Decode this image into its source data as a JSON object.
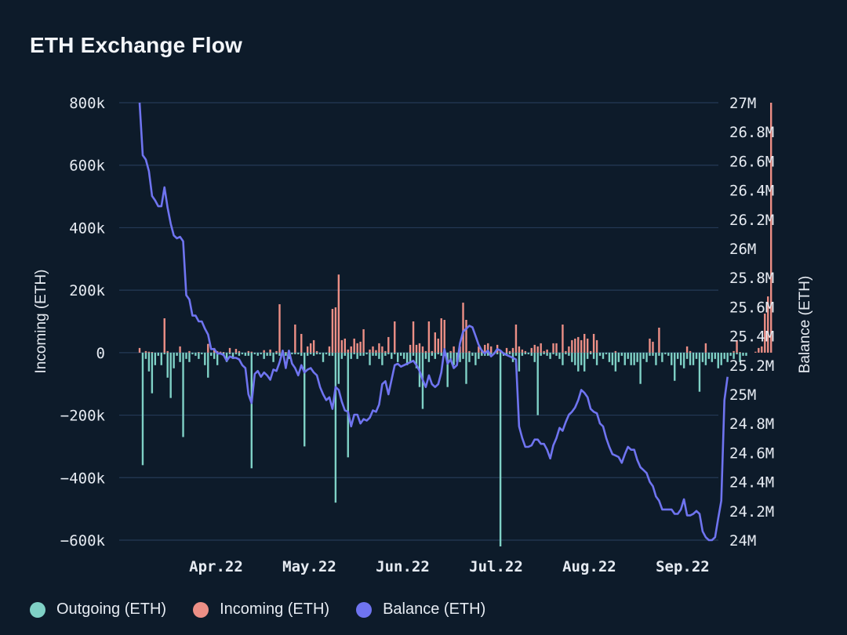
{
  "chart_data": {
    "type": "bar+line",
    "title": "ETH Exchange Flow",
    "left_axis": {
      "label": "Incoming (ETH)",
      "ticks": [
        "800k",
        "600k",
        "400k",
        "200k",
        "0",
        "−200k",
        "−400k",
        "−600k"
      ],
      "tick_values": [
        800000,
        600000,
        400000,
        200000,
        0,
        -200000,
        -400000,
        -600000
      ],
      "range": [
        -600000,
        800000
      ]
    },
    "right_axis": {
      "label": "Balance (ETH)",
      "ticks": [
        "27M",
        "26.8M",
        "26.6M",
        "26.4M",
        "26.2M",
        "26M",
        "25.8M",
        "25.6M",
        "25.4M",
        "25.2M",
        "25M",
        "24.8M",
        "24.6M",
        "24.4M",
        "24.2M",
        "24M"
      ],
      "tick_values": [
        27000000,
        26800000,
        26600000,
        26400000,
        26200000,
        26000000,
        25800000,
        25600000,
        25400000,
        25200000,
        25000000,
        24800000,
        24600000,
        24400000,
        24200000,
        24000000
      ],
      "range": [
        24000000,
        27000000
      ]
    },
    "x_axis": {
      "labels": [
        "Apr.22",
        "May.22",
        "Jun.22",
        "Jul.22",
        "Aug.22",
        "Sep.22"
      ],
      "label_day_index": [
        16,
        46,
        76,
        106,
        136,
        166
      ],
      "num_days": 180
    },
    "colors": {
      "outgoing": "#7fd1c6",
      "incoming": "#ec8f86",
      "balance": "#6f74f0",
      "grid": "#243a56"
    },
    "legend": [
      {
        "label": "Outgoing (ETH)",
        "color": "#7fd1c6"
      },
      {
        "label": "Incoming (ETH)",
        "color": "#ec8f86"
      },
      {
        "label": "Balance (ETH)",
        "color": "#6f74f0"
      }
    ],
    "series": [
      {
        "name": "Incoming (ETH)",
        "type": "bar",
        "values": [
          15000,
          0,
          5000,
          3000,
          2000,
          0,
          0,
          0,
          110000,
          5000,
          0,
          0,
          0,
          20000,
          0,
          0,
          5000,
          0,
          0,
          2000,
          0,
          0,
          28000,
          0,
          15000,
          5000,
          3000,
          2000,
          0,
          15000,
          0,
          12000,
          5000,
          0,
          0,
          5000,
          3000,
          0,
          0,
          0,
          8000,
          0,
          10000,
          0,
          5000,
          155000,
          5000,
          2000,
          0,
          0,
          90000,
          0,
          60000,
          0,
          20000,
          30000,
          40000,
          5000,
          0,
          0,
          0,
          20000,
          140000,
          145000,
          250000,
          40000,
          45000,
          10000,
          20000,
          45000,
          30000,
          35000,
          75000,
          0,
          10000,
          20000,
          8000,
          30000,
          20000,
          5000,
          50000,
          0,
          100000,
          0,
          0,
          0,
          0,
          25000,
          100000,
          25000,
          30000,
          20000,
          5000,
          100000,
          5000,
          65000,
          45000,
          110000,
          105000,
          0,
          5000,
          20000,
          0,
          20000,
          160000,
          105000,
          5000,
          0,
          0,
          20000,
          10000,
          25000,
          30000,
          20000,
          0,
          25000,
          5000,
          0,
          15000,
          5000,
          15000,
          90000,
          20000,
          10000,
          5000,
          0,
          15000,
          25000,
          20000,
          30000,
          5000,
          10000,
          0,
          30000,
          30000,
          0,
          90000,
          5000,
          20000,
          40000,
          45000,
          50000,
          40000,
          60000,
          45000,
          5000,
          60000,
          40000,
          0,
          0,
          0,
          0,
          0,
          5000,
          0,
          0,
          0,
          0,
          0,
          0,
          0,
          0,
          0,
          0,
          45000,
          35000,
          0,
          80000,
          0,
          0,
          0,
          0,
          0,
          0,
          0,
          0,
          20000,
          5000,
          0,
          0,
          0,
          0,
          30000,
          0,
          0,
          0,
          0,
          0,
          0,
          0,
          0,
          5000,
          40000,
          2000,
          0,
          0,
          0,
          0,
          3000,
          15000,
          20000,
          125000,
          180000,
          800000
        ]
      },
      {
        "name": "Outgoing (ETH)",
        "type": "bar",
        "values": [
          0,
          -360000,
          -20000,
          -60000,
          -130000,
          -40000,
          -10000,
          -40000,
          -5000,
          -80000,
          -145000,
          -50000,
          -10000,
          -30000,
          -270000,
          -20000,
          -30000,
          -5000,
          -10000,
          -20000,
          -5000,
          -40000,
          -80000,
          -10000,
          -20000,
          -40000,
          -5000,
          -10000,
          -30000,
          -5000,
          -20000,
          -5000,
          -10000,
          -5000,
          -10000,
          -10000,
          -370000,
          -5000,
          -10000,
          -5000,
          -20000,
          -10000,
          -10000,
          -30000,
          -5000,
          -10000,
          -5000,
          -10000,
          -20000,
          -5000,
          -5000,
          -5000,
          -10000,
          -300000,
          -10000,
          -5000,
          -10000,
          -5000,
          -5000,
          -30000,
          -5000,
          -10000,
          -10000,
          -480000,
          -100000,
          -20000,
          -10000,
          -335000,
          -20000,
          -5000,
          -20000,
          -10000,
          -10000,
          -5000,
          -40000,
          -10000,
          -10000,
          -20000,
          -40000,
          -10000,
          -5000,
          -20000,
          -5000,
          -30000,
          -10000,
          -20000,
          -40000,
          -30000,
          -10000,
          -50000,
          -110000,
          -180000,
          -20000,
          -30000,
          -10000,
          -20000,
          -5000,
          -10000,
          -10000,
          -110000,
          -20000,
          -40000,
          -30000,
          -30000,
          -20000,
          -100000,
          -30000,
          -10000,
          -40000,
          -20000,
          -10000,
          -10000,
          -10000,
          -5000,
          -5000,
          -5000,
          -620000,
          -10000,
          -10000,
          -5000,
          -30000,
          -10000,
          -60000,
          -10000,
          -5000,
          -5000,
          -10000,
          -30000,
          -200000,
          -10000,
          -5000,
          -10000,
          -20000,
          -5000,
          -10000,
          -20000,
          -40000,
          -5000,
          -10000,
          -30000,
          -40000,
          -60000,
          -40000,
          -60000,
          -20000,
          -5000,
          -20000,
          -40000,
          -10000,
          -20000,
          -5000,
          -30000,
          -40000,
          -60000,
          -30000,
          -10000,
          -40000,
          -20000,
          -40000,
          -40000,
          -30000,
          -100000,
          -20000,
          -30000,
          -10000,
          -10000,
          -40000,
          -10000,
          -30000,
          -5000,
          -10000,
          -40000,
          -90000,
          -20000,
          -40000,
          -50000,
          -20000,
          -40000,
          -40000,
          -20000,
          -125000,
          -30000,
          -40000,
          -20000,
          -30000,
          -20000,
          -50000,
          -40000,
          -20000,
          -30000,
          -10000,
          -20000,
          -5000,
          -30000,
          -10000,
          -10000
        ]
      },
      {
        "name": "Balance (ETH)",
        "type": "line",
        "values": [
          27000000,
          26640000,
          26610000,
          26530000,
          26360000,
          26330000,
          26290000,
          26290000,
          26420000,
          26280000,
          26170000,
          26090000,
          26070000,
          26080000,
          26050000,
          25680000,
          25650000,
          25540000,
          25540000,
          25500000,
          25500000,
          25450000,
          25410000,
          25310000,
          25310000,
          25280000,
          25280000,
          25270000,
          25230000,
          25260000,
          25250000,
          25250000,
          25240000,
          25200000,
          25180000,
          25000000,
          24940000,
          25140000,
          25160000,
          25120000,
          25150000,
          25130000,
          25100000,
          25170000,
          25160000,
          25220000,
          25300000,
          25180000,
          25300000,
          25210000,
          25180000,
          25130000,
          25200000,
          25150000,
          25170000,
          25180000,
          25150000,
          25130000,
          25050000,
          25000000,
          24960000,
          24980000,
          24900000,
          25050000,
          25030000,
          24950000,
          24890000,
          24880000,
          24780000,
          24860000,
          24860000,
          24800000,
          24830000,
          24820000,
          24840000,
          24890000,
          24880000,
          24930000,
          25070000,
          25090000,
          25000000,
          25100000,
          25200000,
          25210000,
          25190000,
          25200000,
          25210000,
          25220000,
          25230000,
          25200000,
          25160000,
          25100000,
          25050000,
          25130000,
          25070000,
          25050000,
          25070000,
          25150000,
          25310000,
          25210000,
          25240000,
          25180000,
          25200000,
          25350000,
          25430000,
          25450000,
          25470000,
          25460000,
          25400000,
          25340000,
          25300000,
          25280000,
          25300000,
          25260000,
          25280000,
          25310000,
          25300000,
          25280000,
          25270000,
          25260000,
          25250000,
          25240000,
          24780000,
          24700000,
          24640000,
          24640000,
          24650000,
          24690000,
          24690000,
          24660000,
          24660000,
          24620000,
          24560000,
          24650000,
          24700000,
          24770000,
          24750000,
          24810000,
          24860000,
          24880000,
          24910000,
          24960000,
          25030000,
          25010000,
          24980000,
          24900000,
          24880000,
          24870000,
          24800000,
          24780000,
          24700000,
          24640000,
          24590000,
          24580000,
          24570000,
          24530000,
          24590000,
          24640000,
          24620000,
          24620000,
          24550000,
          24500000,
          24480000,
          24460000,
          24400000,
          24370000,
          24300000,
          24270000,
          24210000,
          24210000,
          24210000,
          24210000,
          24180000,
          24180000,
          24210000,
          24280000,
          24170000,
          24170000,
          24180000,
          24200000,
          24180000,
          24060000,
          24020000,
          24000000,
          24000000,
          24020000,
          24150000,
          24270000,
          24960000,
          25120000
        ]
      }
    ]
  }
}
